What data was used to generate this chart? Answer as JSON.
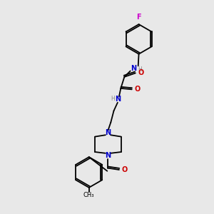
{
  "background_color": "#e8e8e8",
  "bond_color": "#000000",
  "fig_width": 3.0,
  "fig_height": 3.0,
  "dpi": 100,
  "atom_colors": {
    "C": "#000000",
    "N": "#0000cc",
    "O": "#cc0000",
    "F": "#cc00cc",
    "H": "#888888"
  }
}
